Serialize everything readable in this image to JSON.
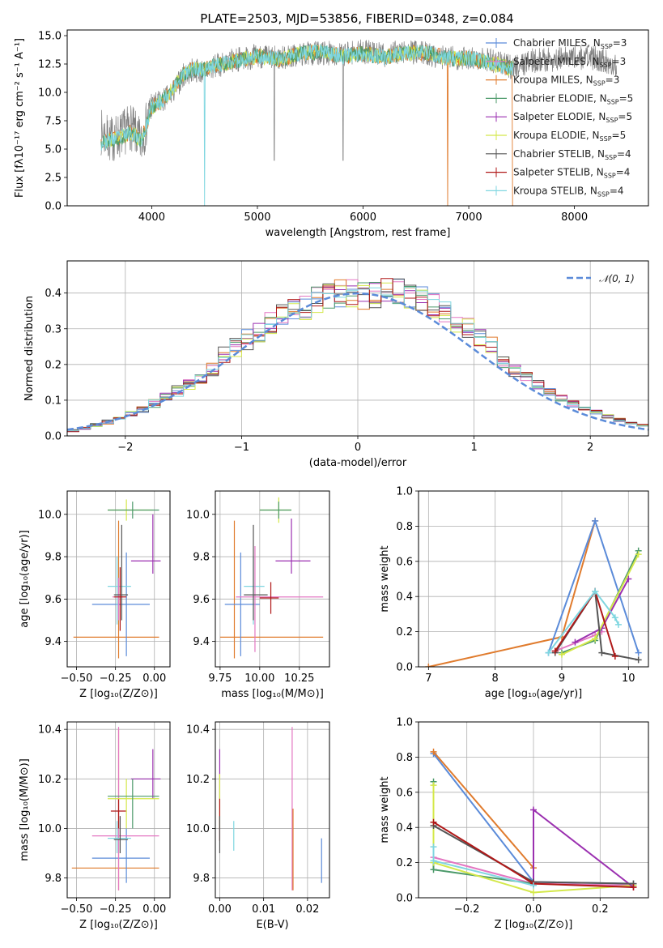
{
  "colors": {
    "Chabrier MILES": "#5b8bd9",
    "Salpeter MILES": "#e377c2",
    "Kroupa MILES": "#e07b2d",
    "Chabrier ELODIE": "#4c9a6a",
    "Salpeter ELODIE": "#9b30b0",
    "Kroupa ELODIE": "#d4e84a",
    "Chabrier STELIB": "#555555",
    "Salpeter STELIB": "#b01818",
    "Kroupa STELIB": "#7fd6e0",
    "data": "#808080"
  },
  "legend_spectrum": [
    {
      "key": "Chabrier MILES",
      "pre": "Chabrier MILES, N",
      "sub": "SSP",
      "post": "=3"
    },
    {
      "key": "Salpeter MILES",
      "pre": "Salpeter MILES, N",
      "sub": "SSP",
      "post": "=3"
    },
    {
      "key": "Kroupa MILES",
      "pre": "Kroupa MILES, N",
      "sub": "SSP",
      "post": "=3"
    },
    {
      "key": "Chabrier ELODIE",
      "pre": "Chabrier ELODIE, N",
      "sub": "SSP",
      "post": "=5"
    },
    {
      "key": "Salpeter ELODIE",
      "pre": "Salpeter ELODIE, N",
      "sub": "SSP",
      "post": "=5"
    },
    {
      "key": "Kroupa ELODIE",
      "pre": "Kroupa ELODIE, N",
      "sub": "SSP",
      "post": "=5"
    },
    {
      "key": "Chabrier STELIB",
      "pre": "Chabrier STELIB, N",
      "sub": "SSP",
      "post": "=4"
    },
    {
      "key": "Salpeter STELIB",
      "pre": "Salpeter STELIB, N",
      "sub": "SSP",
      "post": "=4"
    },
    {
      "key": "Kroupa STELIB",
      "pre": "Kroupa STELIB, N",
      "sub": "SSP",
      "post": "=4"
    }
  ],
  "chart_data": [
    {
      "id": "spectrum",
      "type": "line",
      "title": "PLATE=2503, MJD=53856, FIBERID=0348, z=0.084",
      "xlabel": "wavelength [Angstrom, rest frame]",
      "ylabel": "Flux [fλ10⁻¹⁷ erg cm⁻² s⁻¹ A⁻¹]",
      "xlim": [
        3200,
        8700
      ],
      "ylim": [
        0,
        15.5
      ],
      "xticks": [
        4000,
        5000,
        6000,
        7000,
        8000
      ],
      "yticks": [
        0.0,
        2.5,
        5.0,
        7.5,
        10.0,
        12.5,
        15.0
      ],
      "ytick_labels": [
        "0.0",
        "2.5",
        "5.0",
        "7.5",
        "10.0",
        "12.5",
        "15.0"
      ],
      "series_data": {
        "x": [
          3520,
          3600,
          3700,
          3800,
          3900,
          3950,
          4000,
          4100,
          4200,
          4300,
          4400,
          4500,
          4600,
          4800,
          5000,
          5200,
          5400,
          5600,
          5800,
          6000,
          6200,
          6400,
          6600,
          6800,
          7000,
          7200,
          7400,
          7600,
          7800,
          8000,
          8200,
          8400
        ],
        "y": [
          6.5,
          5.8,
          6.2,
          7.0,
          5.5,
          7.2,
          8.8,
          9.2,
          10.0,
          11.5,
          12.0,
          11.8,
          12.3,
          12.9,
          13.2,
          13.0,
          13.3,
          13.5,
          13.4,
          13.6,
          13.3,
          13.6,
          13.4,
          13.0,
          13.1,
          12.9,
          12.2,
          12.8,
          12.9,
          13.1,
          13.0,
          12.4
        ]
      },
      "series_model": {
        "x": [
          3520,
          3600,
          3700,
          3800,
          3900,
          3950,
          4000,
          4100,
          4200,
          4300,
          4400,
          4500,
          4600,
          4800,
          5000,
          5200,
          5400,
          5600,
          5800,
          6000,
          6200,
          6400,
          6600,
          6800,
          7000,
          7200,
          7400
        ],
        "y": [
          5.5,
          5.8,
          6.0,
          6.5,
          5.8,
          7.0,
          8.7,
          9.3,
          10.3,
          11.6,
          12.1,
          12.0,
          12.4,
          12.8,
          13.2,
          12.9,
          13.4,
          13.6,
          13.2,
          13.4,
          13.1,
          13.5,
          13.5,
          13.0,
          13.0,
          12.6,
          12.1
        ]
      }
    },
    {
      "id": "residuals",
      "type": "line",
      "xlabel": "(data-model)/error",
      "ylabel": "Normed distribution",
      "xlim": [
        -2.5,
        2.5
      ],
      "ylim": [
        0,
        0.49
      ],
      "xticks": [
        -2,
        -1,
        0,
        1,
        2
      ],
      "xtick_labels": [
        "−2",
        "−1",
        "0",
        "1",
        "2"
      ],
      "yticks": [
        0.0,
        0.1,
        0.2,
        0.3,
        0.4
      ],
      "ytick_labels": [
        "0.0",
        "0.1",
        "0.2",
        "0.3",
        "0.4"
      ],
      "legend": "𝒩(0, 1)",
      "gaussian": {
        "mean": 0,
        "sigma": 1
      }
    },
    {
      "id": "age-Z",
      "type": "scatter",
      "xlabel": "Z [log₁₀(Z/Z⊙)]",
      "ylabel": "age  [log₁₀(age/yr)]",
      "xlim": [
        -0.56,
        0.1
      ],
      "ylim": [
        9.28,
        10.11
      ],
      "xticks": [
        -0.5,
        -0.25,
        0.0
      ],
      "xtick_labels": [
        "−0.50",
        "−0.25",
        "0.00"
      ],
      "yticks": [
        9.4,
        9.6,
        9.8,
        10.0
      ],
      "ytick_labels": [
        "9.4",
        "9.6",
        "9.8",
        "10.0"
      ],
      "points": [
        {
          "s": "Kroupa MILES",
          "x": -0.23,
          "y": 9.42,
          "xe": [
            -0.52,
            0.03
          ],
          "ye": [
            9.32,
            9.97
          ]
        },
        {
          "s": "Chabrier MILES",
          "x": -0.18,
          "y": 9.575,
          "xe": [
            -0.4,
            -0.03
          ],
          "ye": [
            9.33,
            9.82
          ]
        },
        {
          "s": "Kroupa STELIB",
          "x": -0.24,
          "y": 9.66,
          "xe": [
            -0.3,
            -0.15
          ],
          "ye": [
            9.48,
            9.8
          ]
        },
        {
          "s": "Salpeter MILES",
          "x": -0.23,
          "y": 9.61,
          "xe": [
            -0.27,
            -0.19
          ],
          "ye": [
            9.5,
            9.7
          ]
        },
        {
          "s": "Chabrier STELIB",
          "x": -0.21,
          "y": 9.62,
          "xe": [
            -0.26,
            -0.17
          ],
          "ye": [
            9.5,
            9.95
          ]
        },
        {
          "s": "Salpeter STELIB",
          "x": -0.22,
          "y": 9.61,
          "xe": [
            -0.26,
            -0.18
          ],
          "ye": [
            9.45,
            9.75
          ]
        },
        {
          "s": "Salpeter ELODIE",
          "x": -0.01,
          "y": 9.78,
          "xe": [
            -0.15,
            0.04
          ],
          "ye": [
            9.72,
            10.0
          ]
        },
        {
          "s": "Kroupa ELODIE",
          "x": -0.18,
          "y": 10.02,
          "xe": [
            -0.3,
            -0.01
          ],
          "ye": [
            9.97,
            10.07
          ]
        },
        {
          "s": "Chabrier ELODIE",
          "x": -0.14,
          "y": 10.02,
          "xe": [
            -0.3,
            0.03
          ],
          "ye": [
            9.98,
            10.06
          ]
        }
      ]
    },
    {
      "id": "age-mass",
      "type": "scatter",
      "xlabel": "mass [log₁₀(M/M⊙)]",
      "ylabel": "",
      "xlim": [
        9.72,
        10.44
      ],
      "ylim": [
        9.28,
        10.11
      ],
      "xticks": [
        9.75,
        10.0,
        10.25
      ],
      "xtick_labels": [
        "9.75",
        "10.00",
        "10.25"
      ],
      "yticks": [
        9.4,
        9.6,
        9.8,
        10.0
      ],
      "ytick_labels": [
        "9.4",
        "9.6",
        "9.8",
        "10.0"
      ],
      "points": [
        {
          "s": "Kroupa MILES",
          "x": 9.84,
          "y": 9.42,
          "xe": [
            9.75,
            10.4
          ],
          "ye": [
            9.32,
            9.97
          ]
        },
        {
          "s": "Chabrier MILES",
          "x": 9.88,
          "y": 9.575,
          "xe": [
            9.78,
            10.0
          ],
          "ye": [
            9.33,
            9.82
          ]
        },
        {
          "s": "Kroupa STELIB",
          "x": 9.96,
          "y": 9.66,
          "xe": [
            9.9,
            10.03
          ],
          "ye": [
            9.48,
            9.8
          ]
        },
        {
          "s": "Salpeter MILES",
          "x": 9.97,
          "y": 9.61,
          "xe": [
            9.85,
            10.4
          ],
          "ye": [
            9.35,
            9.85
          ]
        },
        {
          "s": "Chabrier STELIB",
          "x": 9.96,
          "y": 9.62,
          "xe": [
            9.9,
            10.05
          ],
          "ye": [
            9.5,
            9.95
          ]
        },
        {
          "s": "Salpeter STELIB",
          "x": 10.07,
          "y": 9.605,
          "xe": [
            10.0,
            10.12
          ],
          "ye": [
            9.53,
            9.68
          ]
        },
        {
          "s": "Salpeter ELODIE",
          "x": 10.2,
          "y": 9.78,
          "xe": [
            10.1,
            10.32
          ],
          "ye": [
            9.72,
            9.98
          ]
        },
        {
          "s": "Kroupa ELODIE",
          "x": 10.12,
          "y": 10.02,
          "xe": [
            10.0,
            10.2
          ],
          "ye": [
            9.96,
            10.08
          ]
        },
        {
          "s": "Chabrier ELODIE",
          "x": 10.12,
          "y": 10.02,
          "xe": [
            10.0,
            10.2
          ],
          "ye": [
            9.98,
            10.06
          ]
        }
      ]
    },
    {
      "id": "mw-age",
      "type": "line",
      "xlabel": "age  [log₁₀(age/yr)]",
      "ylabel": "mass weight",
      "xlim": [
        6.85,
        10.3
      ],
      "ylim": [
        0,
        1.0
      ],
      "xticks": [
        7,
        8,
        9,
        10
      ],
      "xtick_labels": [
        "7",
        "8",
        "9",
        "10"
      ],
      "yticks": [
        0.0,
        0.2,
        0.4,
        0.6,
        0.8,
        1.0
      ],
      "ytick_labels": [
        "0.0",
        "0.2",
        "0.4",
        "0.6",
        "0.8",
        "1.0"
      ],
      "series": [
        {
          "s": "Kroupa MILES",
          "x": [
            7.0,
            9.0,
            9.5
          ],
          "y": [
            0.0,
            0.17,
            0.83
          ]
        },
        {
          "s": "Chabrier MILES",
          "x": [
            8.8,
            9.5,
            10.15
          ],
          "y": [
            0.08,
            0.83,
            0.08
          ]
        },
        {
          "s": "Salpeter MILES",
          "x": [
            8.9,
            9.5,
            9.6
          ],
          "y": [
            0.09,
            0.18,
            0.2
          ]
        },
        {
          "s": "Chabrier ELODIE",
          "x": [
            9.0,
            9.5,
            10.15
          ],
          "y": [
            0.08,
            0.15,
            0.66
          ]
        },
        {
          "s": "Salpeter ELODIE",
          "x": [
            9.2,
            9.6,
            10.0
          ],
          "y": [
            0.14,
            0.22,
            0.5
          ]
        },
        {
          "s": "Kroupa ELODIE",
          "x": [
            9.0,
            9.5,
            10.15
          ],
          "y": [
            0.07,
            0.16,
            0.64
          ]
        },
        {
          "s": "Chabrier STELIB",
          "x": [
            8.9,
            9.5,
            9.6,
            10.15
          ],
          "y": [
            0.08,
            0.43,
            0.08,
            0.04
          ]
        },
        {
          "s": "Salpeter STELIB",
          "x": [
            8.9,
            9.5,
            9.8
          ],
          "y": [
            0.09,
            0.43,
            0.06
          ]
        },
        {
          "s": "Kroupa STELIB",
          "x": [
            8.8,
            9.5,
            9.8,
            9.85
          ],
          "y": [
            0.08,
            0.43,
            0.28,
            0.24
          ]
        }
      ]
    },
    {
      "id": "mass-Z",
      "type": "scatter",
      "xlabel": "Z [log₁₀(Z/Z⊙)]",
      "ylabel": "mass [log₁₀(M/M⊙)]",
      "xlim": [
        -0.56,
        0.1
      ],
      "ylim": [
        9.72,
        10.43
      ],
      "xticks": [
        -0.5,
        -0.25,
        0.0
      ],
      "xtick_labels": [
        "−0.50",
        "−0.25",
        "0.00"
      ],
      "yticks": [
        9.8,
        10.0,
        10.2,
        10.4
      ],
      "ytick_labels": [
        "9.8",
        "10.0",
        "10.2",
        "10.4"
      ],
      "points": [
        {
          "s": "Kroupa MILES",
          "x": -0.23,
          "y": 9.84,
          "xe": [
            -0.53,
            0.03
          ],
          "ye": [
            9.75,
            10.4
          ]
        },
        {
          "s": "Chabrier MILES",
          "x": -0.18,
          "y": 9.88,
          "xe": [
            -0.4,
            -0.03
          ],
          "ye": [
            9.78,
            10.0
          ]
        },
        {
          "s": "Salpeter MILES",
          "x": -0.23,
          "y": 9.97,
          "xe": [
            -0.4,
            0.03
          ],
          "ye": [
            9.75,
            10.41
          ]
        },
        {
          "s": "Kroupa STELIB",
          "x": -0.24,
          "y": 9.96,
          "xe": [
            -0.3,
            -0.15
          ],
          "ye": [
            9.9,
            10.03
          ]
        },
        {
          "s": "Chabrier STELIB",
          "x": -0.22,
          "y": 9.955,
          "xe": [
            -0.26,
            -0.17
          ],
          "ye": [
            9.9,
            10.05
          ]
        },
        {
          "s": "Salpeter STELIB",
          "x": -0.23,
          "y": 10.07,
          "xe": [
            -0.28,
            -0.18
          ],
          "ye": [
            10.0,
            10.12
          ]
        },
        {
          "s": "Salpeter ELODIE",
          "x": -0.01,
          "y": 10.2,
          "xe": [
            -0.15,
            0.04
          ],
          "ye": [
            10.12,
            10.32
          ]
        },
        {
          "s": "Kroupa ELODIE",
          "x": -0.18,
          "y": 10.12,
          "xe": [
            -0.3,
            0.03
          ],
          "ye": [
            10.0,
            10.2
          ]
        },
        {
          "s": "Chabrier ELODIE",
          "x": -0.14,
          "y": 10.13,
          "xe": [
            -0.3,
            0.03
          ],
          "ye": [
            10.0,
            10.2
          ]
        }
      ]
    },
    {
      "id": "mass-ebv",
      "type": "scatter",
      "xlabel": "E(B-V)",
      "ylabel": "",
      "xlim": [
        -0.001,
        0.025
      ],
      "ylim": [
        9.72,
        10.43
      ],
      "xticks": [
        0.0,
        0.01,
        0.02
      ],
      "xtick_labels": [
        "0.00",
        "0.01",
        "0.02"
      ],
      "yticks": [
        9.8,
        10.0,
        10.2,
        10.4
      ],
      "ytick_labels": [
        "9.8",
        "10.0",
        "10.2",
        "10.4"
      ],
      "bars": [
        {
          "s": "Salpeter ELODIE",
          "x": 0.0,
          "ye": [
            10.12,
            10.32
          ]
        },
        {
          "s": "Kroupa ELODIE",
          "x": 0.0,
          "ye": [
            10.0,
            10.22
          ]
        },
        {
          "s": "Salpeter STELIB",
          "x": 0.0,
          "ye": [
            9.95,
            10.12
          ]
        },
        {
          "s": "Chabrier STELIB",
          "x": 0.0,
          "ye": [
            9.9,
            10.05
          ]
        },
        {
          "s": "Kroupa STELIB",
          "x": 0.0032,
          "ye": [
            9.91,
            10.03
          ]
        },
        {
          "s": "Salpeter MILES",
          "x": 0.0165,
          "ye": [
            9.75,
            10.41
          ]
        },
        {
          "s": "Kroupa MILES",
          "x": 0.0167,
          "ye": [
            9.75,
            10.08
          ]
        },
        {
          "s": "Chabrier MILES",
          "x": 0.0232,
          "ye": [
            9.78,
            9.96
          ]
        }
      ]
    },
    {
      "id": "mw-Z",
      "type": "line",
      "xlabel": "Z [log₁₀(Z/Z⊙)]",
      "ylabel": "mass weight",
      "xlim": [
        -0.345,
        0.345
      ],
      "ylim": [
        0,
        1.0
      ],
      "xticks": [
        -0.2,
        0.0,
        0.2
      ],
      "xtick_labels": [
        "−0.2",
        "0.0",
        "0.2"
      ],
      "yticks": [
        0.0,
        0.2,
        0.4,
        0.6,
        0.8,
        1.0
      ],
      "ytick_labels": [
        "0.0",
        "0.2",
        "0.4",
        "0.6",
        "0.8",
        "1.0"
      ],
      "series": [
        {
          "s": "Chabrier MILES",
          "x": [
            -0.3,
            0.0,
            0.3
          ],
          "y": [
            0.82,
            0.09,
            0.08
          ]
        },
        {
          "s": "Kroupa MILES",
          "x": [
            -0.3,
            0.0
          ],
          "y": [
            0.83,
            0.17
          ]
        },
        {
          "s": "Salpeter MILES",
          "x": [
            -0.3,
            0.0,
            0.3
          ],
          "y": [
            0.23,
            0.08,
            0.07
          ]
        },
        {
          "s": "Chabrier ELODIE",
          "x": [
            -0.3,
            -0.3,
            0.0
          ],
          "y": [
            0.66,
            0.16,
            0.08
          ]
        },
        {
          "s": "Kroupa ELODIE",
          "x": [
            -0.3,
            -0.3,
            0.0,
            0.3
          ],
          "y": [
            0.64,
            0.2,
            0.03,
            0.07
          ]
        },
        {
          "s": "Salpeter ELODIE",
          "x": [
            0.0,
            0.0,
            0.3
          ],
          "y": [
            0.08,
            0.5,
            0.06
          ]
        },
        {
          "s": "Chabrier STELIB",
          "x": [
            -0.3,
            0.0,
            0.3
          ],
          "y": [
            0.41,
            0.09,
            0.08
          ]
        },
        {
          "s": "Salpeter STELIB",
          "x": [
            -0.3,
            0.0,
            0.3
          ],
          "y": [
            0.43,
            0.08,
            0.06
          ]
        },
        {
          "s": "Kroupa STELIB",
          "x": [
            -0.3,
            -0.3,
            0.0
          ],
          "y": [
            0.29,
            0.21,
            0.07
          ]
        }
      ]
    }
  ]
}
